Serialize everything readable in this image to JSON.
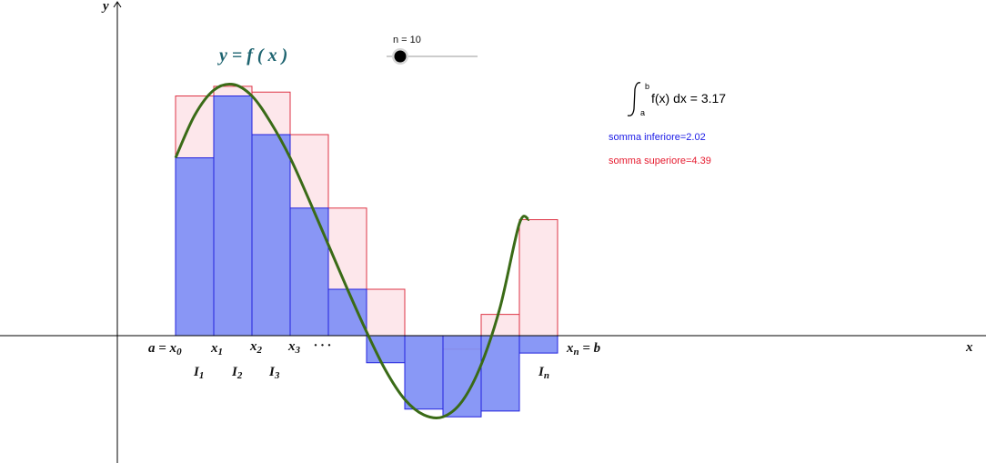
{
  "colors": {
    "lower_fill": "#7f8ff5",
    "lower_stroke": "#2222dd",
    "upper_fill": "#fde3e8",
    "upper_stroke": "#dd3344",
    "curve": "#3a6b17",
    "function_label": "#1e6470",
    "lower_text": "#1a1ae6",
    "upper_text": "#e61a2e",
    "axis": "#000000"
  },
  "axes": {
    "x_label": "x",
    "y_label": "y"
  },
  "function_label": "y = f ( x )",
  "slider": {
    "label": "n = 10",
    "value": 10,
    "position_fraction": 0.15
  },
  "integral": {
    "upper_limit": "b",
    "lower_limit": "a",
    "expression": "f(x) dx = 3.17"
  },
  "lower_sum_label": "somma inferiore=2.02",
  "upper_sum_label": "somma superiore=4.39",
  "x_labels": [
    {
      "text": "a = x",
      "sub": "0"
    },
    {
      "text": "x",
      "sub": "1"
    },
    {
      "text": "x",
      "sub": "2"
    },
    {
      "text": "x",
      "sub": "3"
    },
    {
      "text": "· · ·",
      "sub": ""
    },
    {
      "text": "x",
      "sub": "n",
      "suffix": " = b"
    }
  ],
  "interval_labels": [
    {
      "text": "I",
      "sub": "1"
    },
    {
      "text": "I",
      "sub": "2"
    },
    {
      "text": "I",
      "sub": "3"
    },
    {
      "text": "I",
      "sub": "n"
    }
  ],
  "partition": {
    "a": 0,
    "b": 10,
    "n": 10
  },
  "upper_values": [
    6.2,
    6.45,
    6.3,
    5.2,
    3.3,
    1.2,
    0,
    -0.35,
    0.55,
    3.0
  ],
  "lower_values": [
    4.6,
    6.2,
    5.2,
    3.3,
    1.2,
    -0.7,
    -1.9,
    -2.1,
    -1.95,
    -0.45
  ],
  "curve_points": [
    [
      0,
      4.6
    ],
    [
      0.5,
      5.7
    ],
    [
      1,
      6.35
    ],
    [
      1.5,
      6.5
    ],
    [
      2,
      6.2
    ],
    [
      2.5,
      5.5
    ],
    [
      3,
      4.6
    ],
    [
      3.5,
      3.5
    ],
    [
      4,
      2.35
    ],
    [
      4.5,
      1.2
    ],
    [
      5,
      0.1
    ],
    [
      5.5,
      -0.9
    ],
    [
      6,
      -1.65
    ],
    [
      6.5,
      -2.05
    ],
    [
      7,
      -2.1
    ],
    [
      7.5,
      -1.7
    ],
    [
      8,
      -0.75
    ],
    [
      8.5,
      0.75
    ],
    [
      9,
      2.9
    ],
    [
      9.25,
      3.0
    ]
  ]
}
